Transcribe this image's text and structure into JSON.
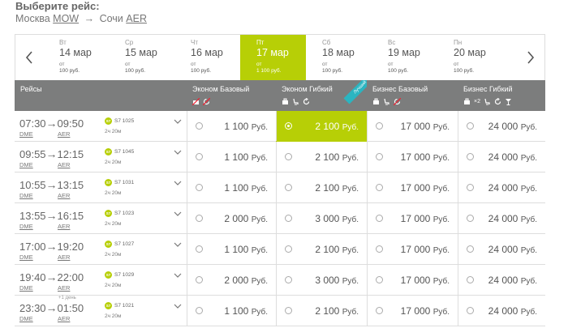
{
  "header": {
    "title": "Выберите рейс:",
    "origin_city": "Москва",
    "origin_code": "MOW",
    "arrow": "→",
    "dest_city": "Сочи",
    "dest_code": "AER"
  },
  "dates": [
    {
      "dow": "Вт",
      "date": "14 мар",
      "from": "от",
      "price": "100 руб."
    },
    {
      "dow": "Ср",
      "date": "15 мар",
      "from": "от",
      "price": "100 руб."
    },
    {
      "dow": "Чт",
      "date": "16 мар",
      "from": "от",
      "price": "100 руб."
    },
    {
      "dow": "Пт",
      "date": "17 мар",
      "from": "от",
      "price": "1 100 руб.",
      "active": true
    },
    {
      "dow": "Сб",
      "date": "18 мар",
      "from": "от",
      "price": "100 руб."
    },
    {
      "dow": "Вс",
      "date": "19 мар",
      "from": "от",
      "price": "100 руб."
    },
    {
      "dow": "Пн",
      "date": "20 мар",
      "from": "от",
      "price": "100 руб."
    }
  ],
  "columns": {
    "flights": "Рейсы",
    "fares": [
      {
        "label": "Эконом Базовый",
        "icons": [
          "no-baggage-icon",
          "no-refund-icon"
        ]
      },
      {
        "label": "Эконом Гибкий",
        "icons": [
          "baggage-icon",
          "seat-icon",
          "refund-icon"
        ],
        "badge": "Лучший"
      },
      {
        "label": "Бизнес Базовый",
        "icons": [
          "baggage-icon",
          "seat-icon",
          "no-refund-icon"
        ]
      },
      {
        "label": "Бизнес Гибкий",
        "icons": [
          "baggage-icon",
          "seat-icon",
          "refund-icon",
          "cocktail-icon"
        ],
        "baggage_count": "×2"
      }
    ]
  },
  "currency": "Руб.",
  "flights": [
    {
      "dep": "07:30",
      "arr": "09:50",
      "from": "DME",
      "to": "AER",
      "carrier": "S7",
      "number": "S7 1025",
      "duration": "2ч 20м",
      "next_day": "",
      "prices": [
        "1 100",
        "2 100",
        "17 000",
        "24 000"
      ],
      "selected": 1
    },
    {
      "dep": "09:55",
      "arr": "12:15",
      "from": "DME",
      "to": "AER",
      "carrier": "S7",
      "number": "S7 1045",
      "duration": "2ч 20м",
      "next_day": "",
      "prices": [
        "1 100",
        "2 100",
        "17 000",
        "24 000"
      ],
      "selected": -1
    },
    {
      "dep": "10:55",
      "arr": "13:15",
      "from": "DME",
      "to": "AER",
      "carrier": "S7",
      "number": "S7 1031",
      "duration": "2ч 20м",
      "next_day": "",
      "prices": [
        "1 100",
        "2 100",
        "17 000",
        "24 000"
      ],
      "selected": -1
    },
    {
      "dep": "13:55",
      "arr": "16:15",
      "from": "DME",
      "to": "AER",
      "carrier": "S7",
      "number": "S7 1023",
      "duration": "2ч 20м",
      "next_day": "",
      "prices": [
        "2 000",
        "3 000",
        "17 000",
        "24 000"
      ],
      "selected": -1
    },
    {
      "dep": "17:00",
      "arr": "19:20",
      "from": "DME",
      "to": "AER",
      "carrier": "S7",
      "number": "S7 1027",
      "duration": "2ч 20м",
      "next_day": "",
      "prices": [
        "1 100",
        "2 100",
        "17 000",
        "24 000"
      ],
      "selected": -1
    },
    {
      "dep": "19:40",
      "arr": "22:00",
      "from": "DME",
      "to": "AER",
      "carrier": "S7",
      "number": "S7 1029",
      "duration": "2ч 20м",
      "next_day": "",
      "prices": [
        "2 000",
        "3 000",
        "17 000",
        "24 000"
      ],
      "selected": -1
    },
    {
      "dep": "23:30",
      "arr": "01:50",
      "from": "DME",
      "to": "AER",
      "carrier": "S7",
      "number": "S7 1021",
      "duration": "2ч 20м",
      "next_day": "+1 день",
      "prices": [
        "1 100",
        "2 100",
        "17 000",
        "24 000"
      ],
      "selected": -1
    }
  ],
  "colors": {
    "accent": "#b7cf06",
    "header_bg": "#7c7d7d",
    "badge": "#2bb5c1"
  }
}
